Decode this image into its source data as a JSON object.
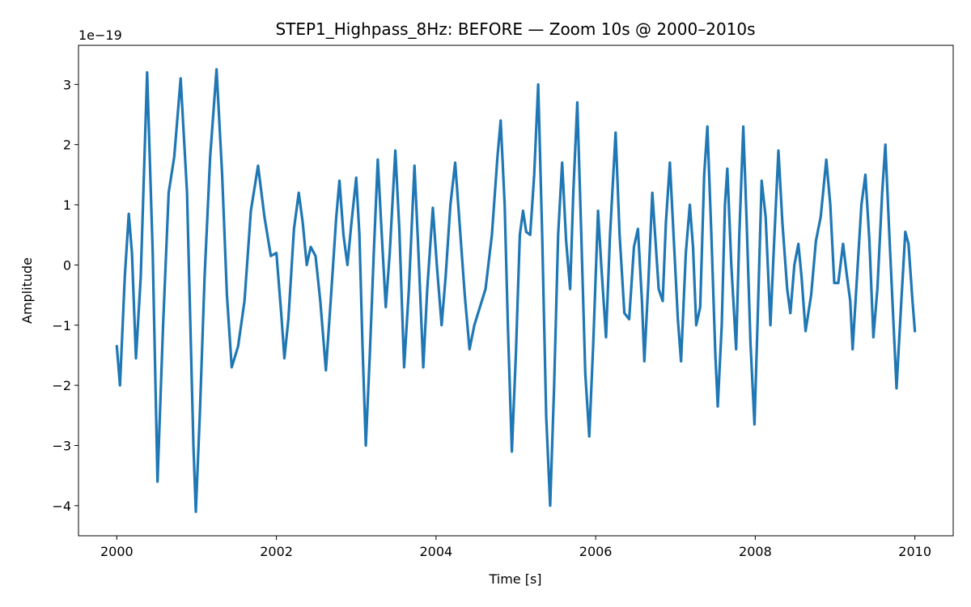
{
  "chart_data": {
    "type": "line",
    "title": "STEP1_Highpass_8Hz: BEFORE — Zoom 10s @ 2000–2010s",
    "xlabel": "Time [s]",
    "ylabel": "Amplitude",
    "y_offset_label": "1e−19",
    "xlim": [
      1999.52,
      2010.48
    ],
    "ylim": [
      -4.5,
      3.65
    ],
    "x_ticks": [
      2000,
      2002,
      2004,
      2006,
      2008,
      2010
    ],
    "x_tick_labels": [
      "2000",
      "2002",
      "2004",
      "2006",
      "2008",
      "2010"
    ],
    "y_ticks": [
      -4,
      -3,
      -2,
      -1,
      0,
      1,
      2,
      3
    ],
    "y_tick_labels": [
      "−4",
      "−3",
      "−2",
      "−1",
      "0",
      "1",
      "2",
      "3"
    ],
    "grid": false,
    "series": [
      {
        "color": "#1f77b4",
        "points": [
          [
            2000.0,
            -1.35
          ],
          [
            2000.04,
            -2.0
          ],
          [
            2000.1,
            -0.2
          ],
          [
            2000.15,
            0.85
          ],
          [
            2000.19,
            0.2
          ],
          [
            2000.24,
            -1.55
          ],
          [
            2000.3,
            -0.2
          ],
          [
            2000.38,
            3.2
          ],
          [
            2000.45,
            0.2
          ],
          [
            2000.51,
            -3.6
          ],
          [
            2000.58,
            -1.0
          ],
          [
            2000.65,
            1.2
          ],
          [
            2000.72,
            1.8
          ],
          [
            2000.8,
            3.1
          ],
          [
            2000.88,
            1.2
          ],
          [
            2000.96,
            -3.0
          ],
          [
            2000.99,
            -4.1
          ],
          [
            2001.04,
            -2.5
          ],
          [
            2001.1,
            -0.2
          ],
          [
            2001.17,
            1.8
          ],
          [
            2001.25,
            3.25
          ],
          [
            2001.32,
            1.5
          ],
          [
            2001.38,
            -0.5
          ],
          [
            2001.44,
            -1.7
          ],
          [
            2001.52,
            -1.35
          ],
          [
            2001.6,
            -0.6
          ],
          [
            2001.68,
            0.9
          ],
          [
            2001.77,
            1.65
          ],
          [
            2001.85,
            0.8
          ],
          [
            2001.93,
            0.15
          ],
          [
            2002.0,
            0.2
          ],
          [
            2002.06,
            -0.8
          ],
          [
            2002.1,
            -1.55
          ],
          [
            2002.15,
            -0.9
          ],
          [
            2002.22,
            0.6
          ],
          [
            2002.28,
            1.2
          ],
          [
            2002.33,
            0.7
          ],
          [
            2002.38,
            0.0
          ],
          [
            2002.43,
            0.3
          ],
          [
            2002.49,
            0.15
          ],
          [
            2002.55,
            -0.6
          ],
          [
            2002.62,
            -1.75
          ],
          [
            2002.68,
            -0.6
          ],
          [
            2002.75,
            0.8
          ],
          [
            2002.79,
            1.4
          ],
          [
            2002.84,
            0.5
          ],
          [
            2002.89,
            0.0
          ],
          [
            2002.94,
            0.7
          ],
          [
            2003.0,
            1.45
          ],
          [
            2003.04,
            0.5
          ],
          [
            2003.08,
            -1.4
          ],
          [
            2003.12,
            -3.0
          ],
          [
            2003.17,
            -1.5
          ],
          [
            2003.22,
            0.2
          ],
          [
            2003.27,
            1.75
          ],
          [
            2003.32,
            0.5
          ],
          [
            2003.37,
            -0.7
          ],
          [
            2003.42,
            0.2
          ],
          [
            2003.49,
            1.9
          ],
          [
            2003.54,
            0.6
          ],
          [
            2003.6,
            -1.7
          ],
          [
            2003.66,
            -0.4
          ],
          [
            2003.73,
            1.65
          ],
          [
            2003.78,
            0.2
          ],
          [
            2003.84,
            -1.7
          ],
          [
            2003.89,
            -0.4
          ],
          [
            2003.96,
            0.95
          ],
          [
            2004.01,
            0.0
          ],
          [
            2004.07,
            -1.0
          ],
          [
            2004.12,
            -0.2
          ],
          [
            2004.18,
            1.0
          ],
          [
            2004.24,
            1.7
          ],
          [
            2004.3,
            0.6
          ],
          [
            2004.36,
            -0.5
          ],
          [
            2004.42,
            -1.4
          ],
          [
            2004.48,
            -1.0
          ],
          [
            2004.55,
            -0.7
          ],
          [
            2004.62,
            -0.4
          ],
          [
            2004.7,
            0.5
          ],
          [
            2004.77,
            1.8
          ],
          [
            2004.81,
            2.4
          ],
          [
            2004.86,
            1.0
          ],
          [
            2004.9,
            -1.0
          ],
          [
            2004.95,
            -3.1
          ],
          [
            2005.0,
            -1.5
          ],
          [
            2005.05,
            0.5
          ],
          [
            2005.09,
            0.9
          ],
          [
            2005.13,
            0.55
          ],
          [
            2005.18,
            0.5
          ],
          [
            2005.23,
            1.5
          ],
          [
            2005.28,
            3.0
          ],
          [
            2005.33,
            0.5
          ],
          [
            2005.38,
            -2.5
          ],
          [
            2005.43,
            -4.0
          ],
          [
            2005.48,
            -2.0
          ],
          [
            2005.53,
            0.5
          ],
          [
            2005.58,
            1.7
          ],
          [
            2005.63,
            0.4
          ],
          [
            2005.68,
            -0.4
          ],
          [
            2005.72,
            1.2
          ],
          [
            2005.77,
            2.7
          ],
          [
            2005.82,
            0.5
          ],
          [
            2005.87,
            -1.8
          ],
          [
            2005.92,
            -2.85
          ],
          [
            2005.97,
            -1.3
          ],
          [
            2006.03,
            0.9
          ],
          [
            2006.07,
            0.0
          ],
          [
            2006.13,
            -1.2
          ],
          [
            2006.18,
            0.5
          ],
          [
            2006.25,
            2.2
          ],
          [
            2006.3,
            0.5
          ],
          [
            2006.36,
            -0.8
          ],
          [
            2006.42,
            -0.9
          ],
          [
            2006.48,
            0.3
          ],
          [
            2006.53,
            0.6
          ],
          [
            2006.58,
            -0.6
          ],
          [
            2006.61,
            -1.6
          ],
          [
            2006.66,
            -0.3
          ],
          [
            2006.71,
            1.2
          ],
          [
            2006.74,
            0.6
          ],
          [
            2006.79,
            -0.4
          ],
          [
            2006.84,
            -0.6
          ],
          [
            2006.88,
            0.7
          ],
          [
            2006.93,
            1.7
          ],
          [
            2006.98,
            0.4
          ],
          [
            2007.03,
            -0.9
          ],
          [
            2007.07,
            -1.6
          ],
          [
            2007.13,
            0.2
          ],
          [
            2007.18,
            1.0
          ],
          [
            2007.22,
            0.3
          ],
          [
            2007.26,
            -1.0
          ],
          [
            2007.31,
            -0.7
          ],
          [
            2007.36,
            1.5
          ],
          [
            2007.4,
            2.3
          ],
          [
            2007.45,
            0.5
          ],
          [
            2007.5,
            -1.5
          ],
          [
            2007.53,
            -2.35
          ],
          [
            2007.58,
            -1.0
          ],
          [
            2007.62,
            1.0
          ],
          [
            2007.65,
            1.6
          ],
          [
            2007.7,
            0.0
          ],
          [
            2007.76,
            -1.4
          ],
          [
            2007.8,
            0.5
          ],
          [
            2007.85,
            2.3
          ],
          [
            2007.89,
            0.8
          ],
          [
            2007.94,
            -1.3
          ],
          [
            2007.99,
            -2.65
          ],
          [
            2008.03,
            -0.9
          ],
          [
            2008.08,
            1.4
          ],
          [
            2008.13,
            0.8
          ],
          [
            2008.19,
            -1.0
          ],
          [
            2008.23,
            0.2
          ],
          [
            2008.29,
            1.9
          ],
          [
            2008.34,
            0.7
          ],
          [
            2008.4,
            -0.4
          ],
          [
            2008.44,
            -0.8
          ],
          [
            2008.49,
            0.0
          ],
          [
            2008.54,
            0.35
          ],
          [
            2008.58,
            -0.2
          ],
          [
            2008.63,
            -1.1
          ],
          [
            2008.7,
            -0.5
          ],
          [
            2008.76,
            0.4
          ],
          [
            2008.82,
            0.8
          ],
          [
            2008.89,
            1.75
          ],
          [
            2008.94,
            1.0
          ],
          [
            2008.99,
            -0.3
          ],
          [
            2009.04,
            -0.3
          ],
          [
            2009.1,
            0.35
          ],
          [
            2009.15,
            -0.2
          ],
          [
            2009.19,
            -0.6
          ],
          [
            2009.22,
            -1.4
          ],
          [
            2009.27,
            -0.3
          ],
          [
            2009.33,
            1.0
          ],
          [
            2009.38,
            1.5
          ],
          [
            2009.43,
            0.4
          ],
          [
            2009.48,
            -1.2
          ],
          [
            2009.53,
            -0.4
          ],
          [
            2009.59,
            1.2
          ],
          [
            2009.63,
            2.0
          ],
          [
            2009.68,
            0.5
          ],
          [
            2009.74,
            -1.2
          ],
          [
            2009.77,
            -2.05
          ],
          [
            2009.83,
            -0.6
          ],
          [
            2009.88,
            0.55
          ],
          [
            2009.92,
            0.35
          ],
          [
            2009.97,
            -0.6
          ],
          [
            2010.0,
            -1.1
          ]
        ]
      }
    ]
  }
}
